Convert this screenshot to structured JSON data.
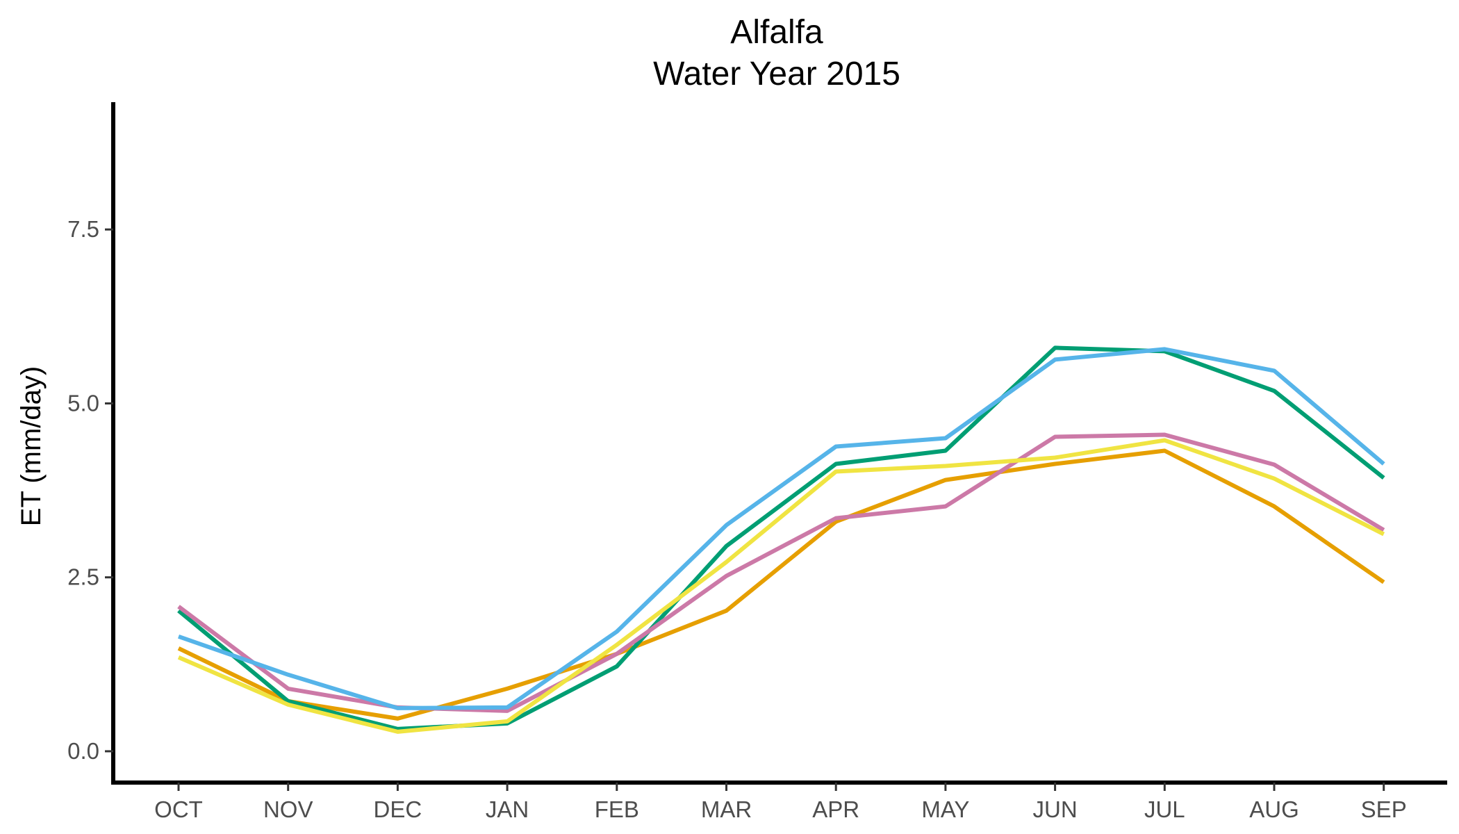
{
  "chart_data": {
    "type": "line",
    "title": "Alfalfa",
    "subtitle": "Water Year 2015",
    "xlabel": "",
    "ylabel": "ET (mm/day)",
    "ylim": [
      -0.45,
      9.3
    ],
    "yticks": [
      0.0,
      2.5,
      5.0,
      7.5
    ],
    "ytick_labels": [
      "0.0",
      "2.5",
      "5.0",
      "7.5"
    ],
    "grid": false,
    "legend": "none",
    "categories": [
      "OCT",
      "NOV",
      "DEC",
      "JAN",
      "FEB",
      "MAR",
      "APR",
      "MAY",
      "JUN",
      "JUL",
      "AUG",
      "SEP"
    ],
    "series": [
      {
        "color": "#E69F00",
        "values": [
          1.48,
          0.72,
          0.47,
          0.9,
          1.4,
          2.02,
          3.3,
          3.9,
          4.13,
          4.32,
          3.52,
          2.43
        ]
      },
      {
        "color": "#009E73",
        "values": [
          2.02,
          0.72,
          0.32,
          0.4,
          1.22,
          2.95,
          4.13,
          4.32,
          5.8,
          5.75,
          5.18,
          3.93
        ]
      },
      {
        "color": "#CC79A7",
        "values": [
          2.08,
          0.9,
          0.63,
          0.58,
          1.4,
          2.52,
          3.35,
          3.52,
          4.52,
          4.55,
          4.12,
          3.18
        ]
      },
      {
        "color": "#F0E442",
        "values": [
          1.35,
          0.67,
          0.28,
          0.43,
          1.53,
          2.72,
          4.02,
          4.1,
          4.22,
          4.47,
          3.92,
          3.12
        ]
      },
      {
        "color": "#56B4E9",
        "values": [
          1.65,
          1.1,
          0.62,
          0.63,
          1.72,
          3.25,
          4.38,
          4.5,
          5.63,
          5.78,
          5.47,
          4.13
        ]
      }
    ]
  }
}
